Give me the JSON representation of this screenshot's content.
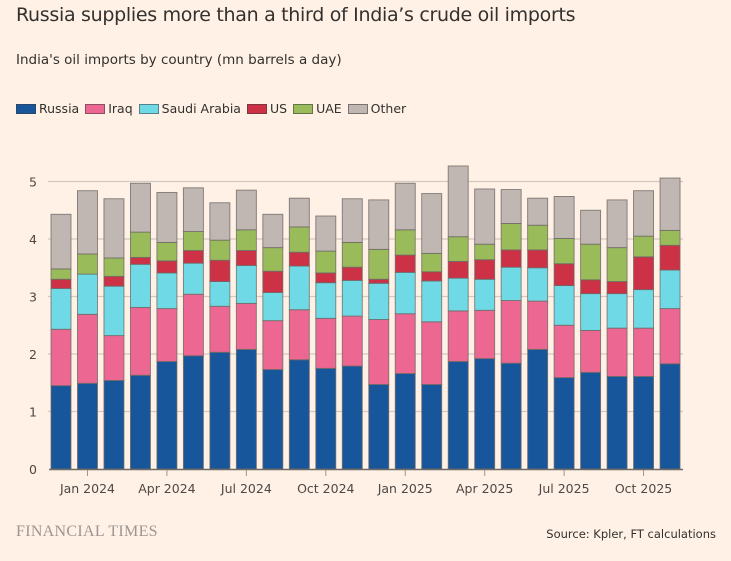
{
  "header": {
    "title": "Russia supplies more than a third of India’s crude oil imports",
    "subtitle": "India's oil imports by country (mn barrels a day)"
  },
  "legend": [
    {
      "name": "Russia",
      "color": "#17569B"
    },
    {
      "name": "Iraq",
      "color": "#EC6792"
    },
    {
      "name": "Saudi Arabia",
      "color": "#6FDAE5"
    },
    {
      "name": "US",
      "color": "#CC3146"
    },
    {
      "name": "UAE",
      "color": "#9ABB59"
    },
    {
      "name": "Other",
      "color": "#C0B7B2"
    }
  ],
  "footer": {
    "brand": "FINANCIAL TIMES",
    "source": "Source: Kpler, FT calculations"
  },
  "chart_data": {
    "type": "bar",
    "stacked": true,
    "title": "Russia supplies more than a third of India’s crude oil imports",
    "subtitle": "India's oil imports by country (mn barrels a day)",
    "xlabel": "",
    "ylabel": "mn barrels a day",
    "ylim": [
      0,
      5
    ],
    "yticks": [
      0,
      1,
      2,
      3,
      4,
      5
    ],
    "grid": true,
    "legend_position": "top-left",
    "categories": [
      "Dec 2023",
      "Jan 2024",
      "Feb 2024",
      "Mar 2024",
      "Apr 2024",
      "May 2024",
      "Jun 2024",
      "Jul 2024",
      "Aug 2024",
      "Sep 2024",
      "Oct 2024",
      "Nov 2024",
      "Dec 2024",
      "Jan 2025",
      "Feb 2025",
      "Mar 2025",
      "Apr 2025",
      "May 2025",
      "Jun 2025",
      "Jul 2025",
      "Aug 2025",
      "Sep 2025",
      "Oct 2025",
      "Nov 2025"
    ],
    "xtick_labels": [
      {
        "index": 1,
        "label": "Jan 2024"
      },
      {
        "index": 4,
        "label": "Apr 2024"
      },
      {
        "index": 7,
        "label": "Jul 2024"
      },
      {
        "index": 10,
        "label": "Oct 2024"
      },
      {
        "index": 13,
        "label": "Jan 2025"
      },
      {
        "index": 16,
        "label": "Apr 2025"
      },
      {
        "index": 19,
        "label": "Jul 2025"
      },
      {
        "index": 22,
        "label": "Oct 2025"
      }
    ],
    "series": [
      {
        "name": "Russia",
        "color": "#17569B",
        "values": [
          1.45,
          1.49,
          1.54,
          1.63,
          1.87,
          1.97,
          2.03,
          2.08,
          1.73,
          1.9,
          1.75,
          1.79,
          1.47,
          1.66,
          1.47,
          1.87,
          1.92,
          1.84,
          2.08,
          1.59,
          1.68,
          1.61,
          1.61,
          1.83
        ]
      },
      {
        "name": "Iraq",
        "color": "#EC6792",
        "values": [
          0.98,
          1.2,
          0.78,
          1.18,
          0.92,
          1.07,
          0.8,
          0.8,
          0.85,
          0.87,
          0.87,
          0.87,
          1.13,
          1.04,
          1.09,
          0.88,
          0.84,
          1.09,
          0.84,
          0.91,
          0.73,
          0.84,
          0.84,
          0.96
        ]
      },
      {
        "name": "Saudi Arabia",
        "color": "#6FDAE5",
        "values": [
          0.71,
          0.7,
          0.86,
          0.75,
          0.62,
          0.54,
          0.43,
          0.66,
          0.49,
          0.76,
          0.62,
          0.62,
          0.63,
          0.72,
          0.71,
          0.57,
          0.54,
          0.58,
          0.58,
          0.69,
          0.64,
          0.6,
          0.67,
          0.67
        ]
      },
      {
        "name": "US",
        "color": "#CC3146",
        "values": [
          0.16,
          0.0,
          0.17,
          0.12,
          0.21,
          0.22,
          0.37,
          0.26,
          0.37,
          0.24,
          0.17,
          0.23,
          0.07,
          0.3,
          0.16,
          0.29,
          0.34,
          0.3,
          0.31,
          0.38,
          0.24,
          0.21,
          0.57,
          0.43
        ]
      },
      {
        "name": "UAE",
        "color": "#9ABB59",
        "values": [
          0.18,
          0.35,
          0.32,
          0.44,
          0.32,
          0.33,
          0.35,
          0.36,
          0.41,
          0.44,
          0.38,
          0.43,
          0.52,
          0.44,
          0.32,
          0.43,
          0.27,
          0.46,
          0.43,
          0.44,
          0.62,
          0.59,
          0.36,
          0.26
        ]
      },
      {
        "name": "Other",
        "color": "#C0B7B2",
        "values": [
          0.95,
          1.1,
          1.03,
          0.85,
          0.87,
          0.76,
          0.65,
          0.69,
          0.58,
          0.5,
          0.61,
          0.76,
          0.86,
          0.81,
          1.04,
          1.23,
          0.96,
          0.59,
          0.47,
          0.73,
          0.59,
          0.83,
          0.79,
          0.91
        ]
      }
    ]
  }
}
